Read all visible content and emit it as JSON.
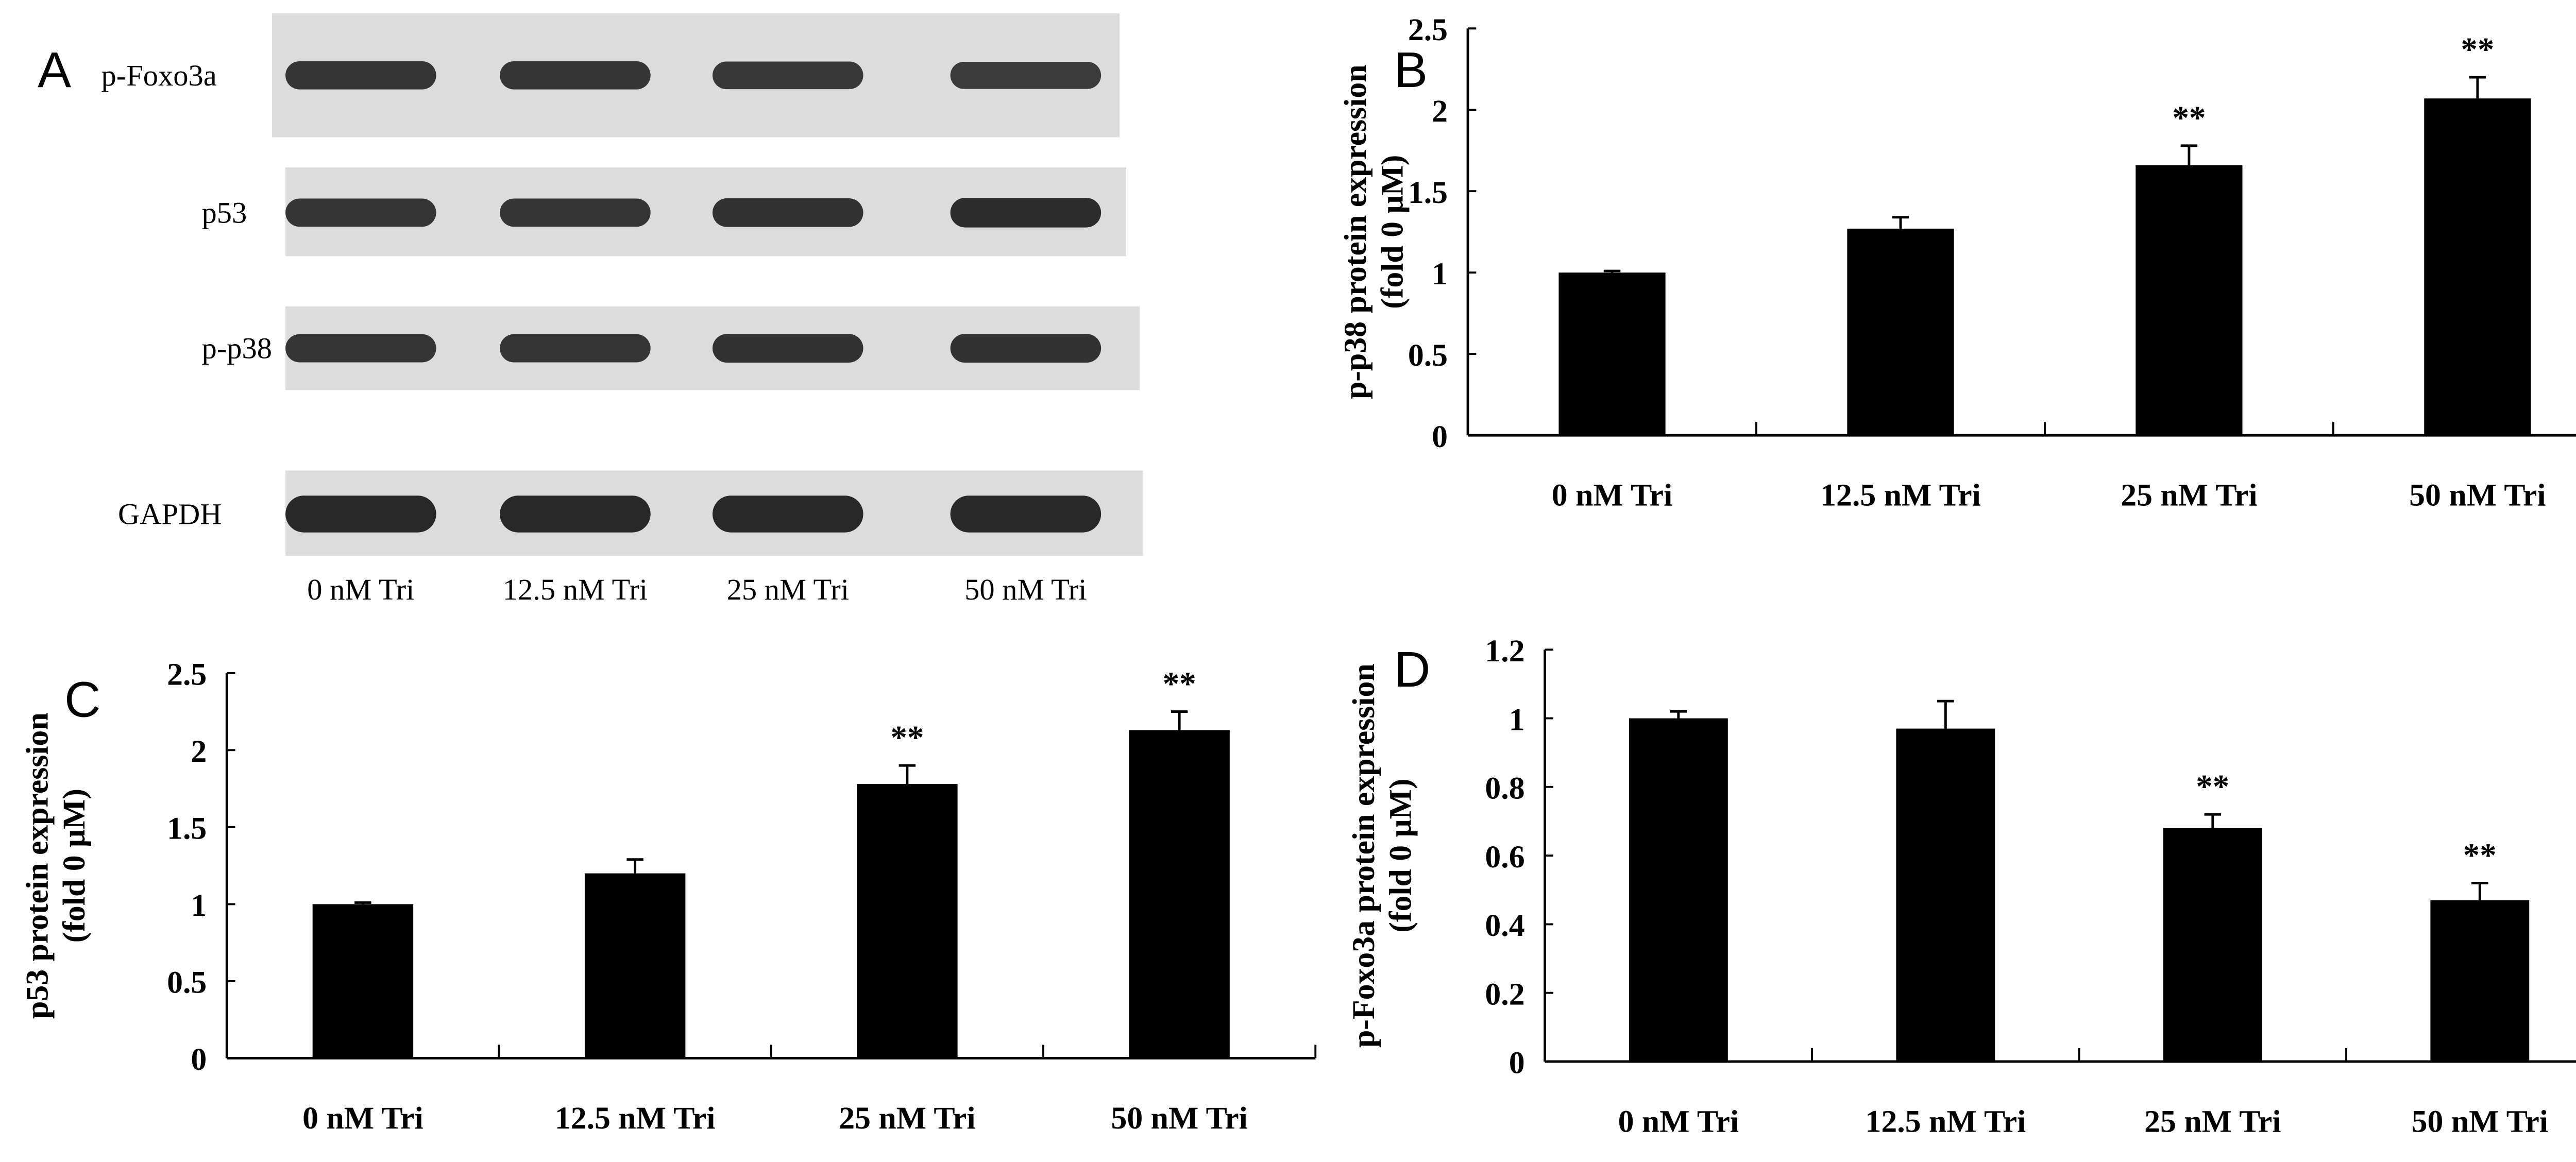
{
  "panel_letters": [
    "A",
    "B",
    "C",
    "D"
  ],
  "blot": {
    "rows": [
      "p-Foxo3a",
      "p53",
      "p-p38",
      "GAPDH"
    ],
    "lanes": [
      "0 nM Tri",
      "12.5 nM Tri",
      "25 nM Tri",
      "50 nM Tri"
    ],
    "band_intensity": [
      [
        0.8,
        0.8,
        0.75,
        0.7
      ],
      [
        0.8,
        0.8,
        0.85,
        0.95
      ],
      [
        0.8,
        0.8,
        0.85,
        0.85
      ],
      [
        1,
        1,
        1,
        1
      ]
    ]
  },
  "chart_data": [
    {
      "id": "B",
      "type": "bar",
      "title": "",
      "ylabel_line1": "p-p38 protein expression",
      "ylabel_line2": "(fold 0 μM)",
      "categories": [
        "0 nM Tri",
        "12.5 nM Tri",
        "25 nM Tri",
        "50 nM Tri"
      ],
      "values": [
        1.0,
        1.27,
        1.66,
        2.07
      ],
      "errors": [
        0.01,
        0.07,
        0.12,
        0.13
      ],
      "significance": [
        "",
        "",
        "**",
        "**"
      ],
      "ylim": [
        0,
        2.5
      ],
      "yticks": [
        "0",
        "0.5",
        "1",
        "1.5",
        "2",
        "2.5"
      ],
      "ytick_values": [
        0,
        0.5,
        1,
        1.5,
        2,
        2.5
      ]
    },
    {
      "id": "C",
      "type": "bar",
      "title": "",
      "ylabel_line1": "p53 protein expression",
      "ylabel_line2": "(fold 0 μM)",
      "categories": [
        "0 nM Tri",
        "12.5 nM Tri",
        "25 nM Tri",
        "50 nM Tri"
      ],
      "values": [
        1.0,
        1.2,
        1.78,
        2.13
      ],
      "errors": [
        0.01,
        0.09,
        0.12,
        0.12
      ],
      "significance": [
        "",
        "",
        "**",
        "**"
      ],
      "ylim": [
        0,
        2.5
      ],
      "yticks": [
        "0",
        "0.5",
        "1",
        "1.5",
        "2",
        "2.5"
      ],
      "ytick_values": [
        0,
        0.5,
        1,
        1.5,
        2,
        2.5
      ]
    },
    {
      "id": "D",
      "type": "bar",
      "title": "",
      "ylabel_line1": "p-Foxo3a protein expression",
      "ylabel_line2": "(fold 0 μM)",
      "categories": [
        "0 nM Tri",
        "12.5 nM Tri",
        "25 nM Tri",
        "50 nM Tri"
      ],
      "values": [
        1.0,
        0.97,
        0.68,
        0.47
      ],
      "errors": [
        0.02,
        0.08,
        0.04,
        0.05
      ],
      "significance": [
        "",
        "",
        "**",
        "**"
      ],
      "ylim": [
        0,
        1.2
      ],
      "yticks": [
        "0",
        "0.2",
        "0.4",
        "0.6",
        "0.8",
        "1",
        "1.2"
      ],
      "ytick_values": [
        0,
        0.2,
        0.4,
        0.6,
        0.8,
        1,
        1.2
      ]
    }
  ]
}
